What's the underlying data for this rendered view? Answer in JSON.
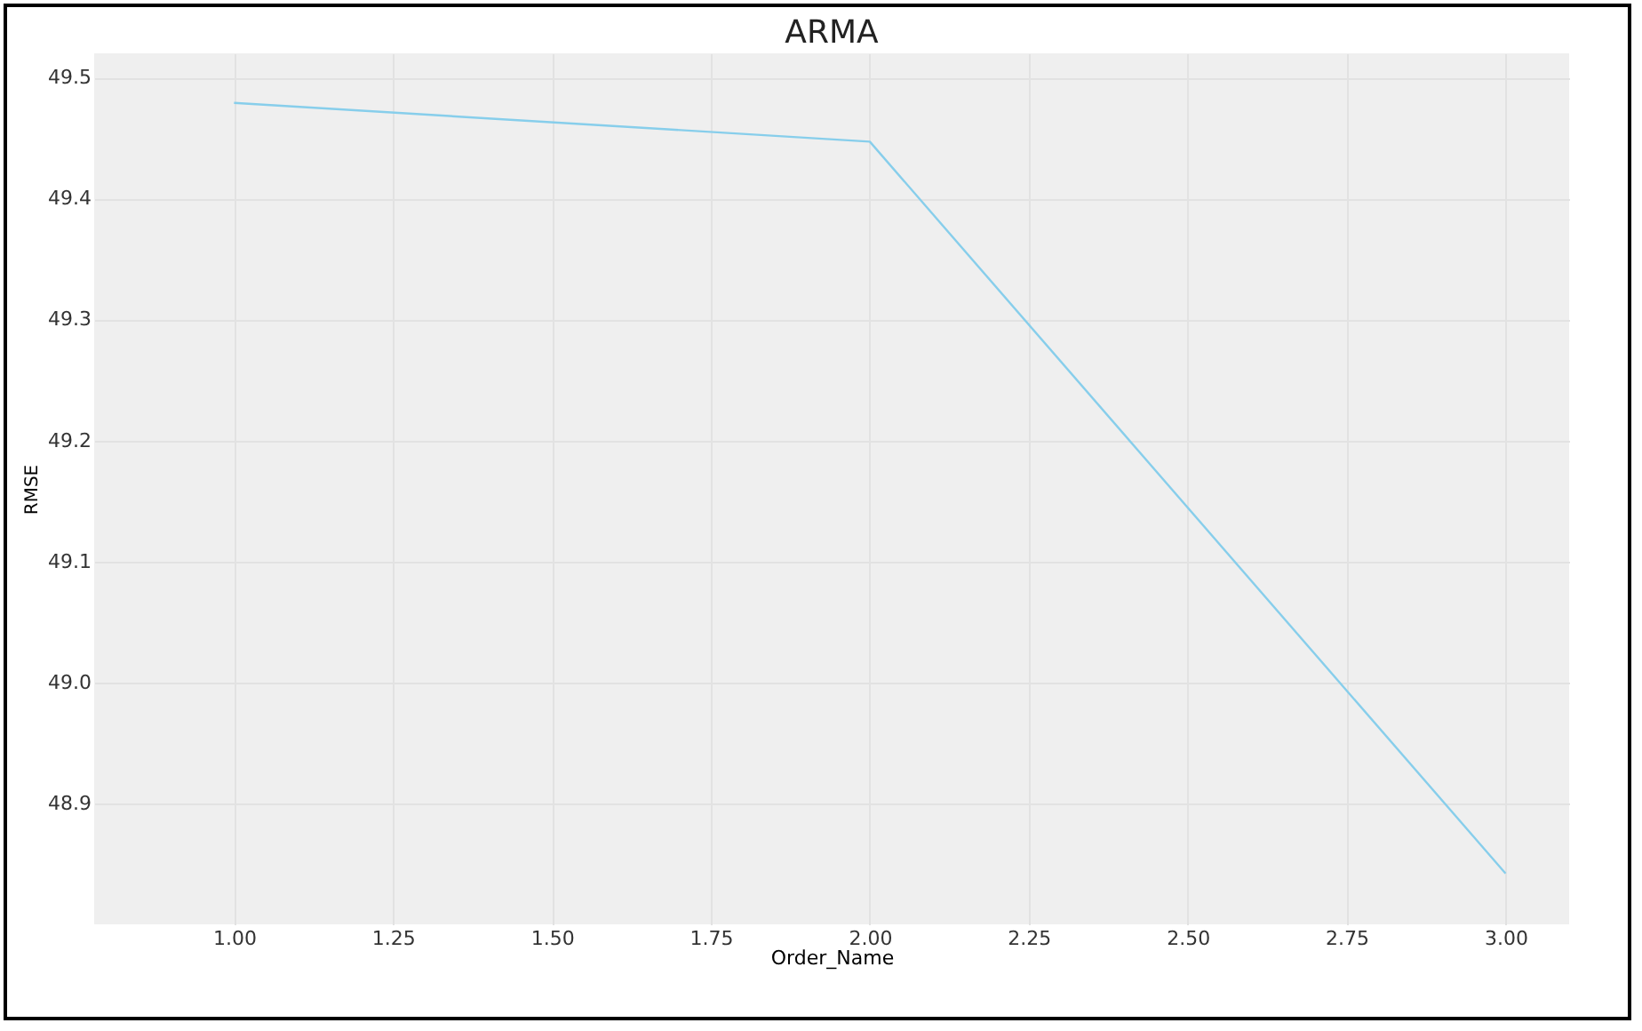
{
  "chart_data": {
    "type": "line",
    "title": "ARMA",
    "xlabel": "Order_Name",
    "ylabel": "RMSE",
    "x": [
      1,
      2,
      3
    ],
    "series": [
      {
        "color": "#87ceeb",
        "values": [
          49.479,
          49.447,
          48.842
        ]
      }
    ],
    "xlim": [
      0.78,
      3.1
    ],
    "ylim": [
      48.8,
      49.52
    ],
    "xticks": [
      {
        "value": 1,
        "label": "1.00"
      },
      {
        "value": 1.25,
        "label": "1.25"
      },
      {
        "value": 1.5,
        "label": "1.50"
      },
      {
        "value": 1.75,
        "label": "1.75"
      },
      {
        "value": 2,
        "label": "2.00"
      },
      {
        "value": 2.25,
        "label": "2.25"
      },
      {
        "value": 2.5,
        "label": "2.50"
      },
      {
        "value": 2.75,
        "label": "2.75"
      },
      {
        "value": 3,
        "label": "3.00"
      }
    ],
    "yticks": [
      48.9,
      {
        "value": 49,
        "label": "49.0"
      },
      49.1,
      49.2,
      49.3,
      49.4,
      49.5
    ],
    "grid": true,
    "line_style": "solid"
  }
}
